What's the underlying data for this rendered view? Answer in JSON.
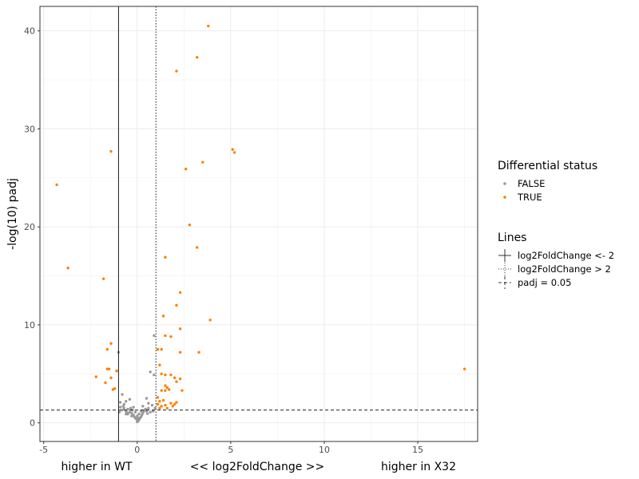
{
  "chart_data": {
    "type": "scatter",
    "title": "",
    "xlabel": "<< log2FoldChange >>",
    "xlabel_left": "higher in WT",
    "xlabel_right": "higher in X32",
    "ylabel": "-log(10) padj",
    "xlim": [
      -5.2,
      18.2
    ],
    "ylim": [
      -1.9,
      42.5
    ],
    "xticks": [
      -5,
      0,
      5,
      10,
      15
    ],
    "yticks": [
      0,
      10,
      20,
      30,
      40
    ],
    "grid": true,
    "legend_placement": "right",
    "series": [
      {
        "name": "FALSE",
        "color": "#999999",
        "points": [
          [
            -1.0,
            7.2
          ],
          [
            0.9,
            8.9
          ],
          [
            0.7,
            5.2
          ],
          [
            0.9,
            4.9
          ],
          [
            0.5,
            2.5
          ],
          [
            -0.8,
            2.9
          ],
          [
            -0.4,
            2.4
          ],
          [
            -0.6,
            2.2
          ],
          [
            0.6,
            2.0
          ],
          [
            0.8,
            1.8
          ],
          [
            -0.9,
            1.6
          ],
          [
            -0.7,
            1.5
          ],
          [
            -0.5,
            1.4
          ],
          [
            -0.6,
            1.2
          ],
          [
            -0.4,
            1.1
          ],
          [
            -0.3,
            1.0
          ],
          [
            -0.5,
            0.9
          ],
          [
            -0.2,
            0.8
          ],
          [
            -0.3,
            0.7
          ],
          [
            -0.15,
            0.6
          ],
          [
            -0.1,
            0.5
          ],
          [
            -0.05,
            0.4
          ],
          [
            0.0,
            0.3
          ],
          [
            0.05,
            0.2
          ],
          [
            0.0,
            0.1
          ],
          [
            0.1,
            0.3
          ],
          [
            0.15,
            0.5
          ],
          [
            0.2,
            0.6
          ],
          [
            0.25,
            0.8
          ],
          [
            0.3,
            1.0
          ],
          [
            0.35,
            1.2
          ],
          [
            0.4,
            1.3
          ],
          [
            0.45,
            1.4
          ],
          [
            0.5,
            1.2
          ],
          [
            0.6,
            1.5
          ],
          [
            -0.7,
            1.9
          ],
          [
            -0.8,
            1.3
          ],
          [
            -0.2,
            1.6
          ],
          [
            -0.35,
            1.5
          ],
          [
            0.2,
            1.2
          ],
          [
            -0.1,
            1.1
          ],
          [
            0.1,
            0.9
          ],
          [
            -0.25,
            1.3
          ],
          [
            0.3,
            1.7
          ],
          [
            0.7,
            1.1
          ],
          [
            0.85,
            1.2
          ],
          [
            -0.95,
            1.1
          ],
          [
            -0.6,
            0.9
          ],
          [
            0.0,
            0.7
          ],
          [
            0.05,
            0.5
          ],
          [
            -0.9,
            2.1
          ],
          [
            -0.75,
            1.7
          ],
          [
            0.95,
            1.5
          ],
          [
            -0.55,
            1.05
          ],
          [
            0.55,
            0.95
          ]
        ]
      },
      {
        "name": "TRUE",
        "color": "#ff7f00",
        "points": [
          [
            3.8,
            40.5
          ],
          [
            3.2,
            37.3
          ],
          [
            2.1,
            35.9
          ],
          [
            -1.4,
            27.7
          ],
          [
            5.1,
            27.9
          ],
          [
            5.2,
            27.6
          ],
          [
            3.5,
            26.6
          ],
          [
            2.6,
            25.9
          ],
          [
            -4.3,
            24.3
          ],
          [
            2.8,
            20.2
          ],
          [
            3.2,
            17.9
          ],
          [
            1.5,
            16.9
          ],
          [
            -3.7,
            15.8
          ],
          [
            -1.8,
            14.7
          ],
          [
            2.3,
            13.3
          ],
          [
            2.1,
            12.0
          ],
          [
            3.9,
            10.5
          ],
          [
            1.4,
            10.9
          ],
          [
            2.3,
            9.6
          ],
          [
            1.5,
            8.9
          ],
          [
            1.8,
            8.8
          ],
          [
            -1.4,
            8.1
          ],
          [
            -1.6,
            7.5
          ],
          [
            1.1,
            7.5
          ],
          [
            1.3,
            7.5
          ],
          [
            2.3,
            7.2
          ],
          [
            3.3,
            7.2
          ],
          [
            1.2,
            5.9
          ],
          [
            -1.5,
            5.5
          ],
          [
            -1.6,
            5.5
          ],
          [
            -1.1,
            5.3
          ],
          [
            -2.2,
            4.7
          ],
          [
            -1.4,
            4.6
          ],
          [
            1.3,
            5.0
          ],
          [
            1.5,
            4.9
          ],
          [
            1.8,
            4.9
          ],
          [
            2.0,
            4.6
          ],
          [
            2.1,
            4.2
          ],
          [
            2.3,
            4.5
          ],
          [
            -1.7,
            4.1
          ],
          [
            1.5,
            3.8
          ],
          [
            1.6,
            3.6
          ],
          [
            1.7,
            3.4
          ],
          [
            1.5,
            3.3
          ],
          [
            1.3,
            3.3
          ],
          [
            2.4,
            3.3
          ],
          [
            -1.2,
            3.5
          ],
          [
            -1.3,
            3.4
          ],
          [
            1.1,
            2.6
          ],
          [
            1.2,
            2.2
          ],
          [
            1.1,
            1.9
          ],
          [
            1.3,
            1.7
          ],
          [
            1.5,
            1.8
          ],
          [
            1.8,
            2.0
          ],
          [
            2.1,
            2.1
          ],
          [
            1.6,
            1.5
          ],
          [
            1.9,
            1.7
          ],
          [
            1.2,
            1.5
          ],
          [
            1.4,
            2.3
          ],
          [
            2.0,
            1.9
          ],
          [
            17.5,
            5.5
          ]
        ]
      }
    ],
    "reference_lines": [
      {
        "label": "log2FoldChange <- 2",
        "orientation": "vertical",
        "value": -1,
        "style": "solid"
      },
      {
        "label": "log2FoldChange > 2",
        "orientation": "vertical",
        "value": 1,
        "style": "dotted"
      },
      {
        "label": "padj = 0.05",
        "orientation": "horizontal",
        "value": 1.3,
        "style": "dashed"
      }
    ],
    "legend": {
      "point_title": "Differential status",
      "point_items": [
        {
          "label": "FALSE",
          "color": "#999999"
        },
        {
          "label": "TRUE",
          "color": "#ff7f00"
        }
      ],
      "line_title": "Lines",
      "line_items": [
        {
          "label": "log2FoldChange <- 2",
          "style": "solid"
        },
        {
          "label": "log2FoldChange > 2",
          "style": "dotted"
        },
        {
          "label": "padj = 0.05",
          "style": "dashed"
        }
      ]
    }
  }
}
